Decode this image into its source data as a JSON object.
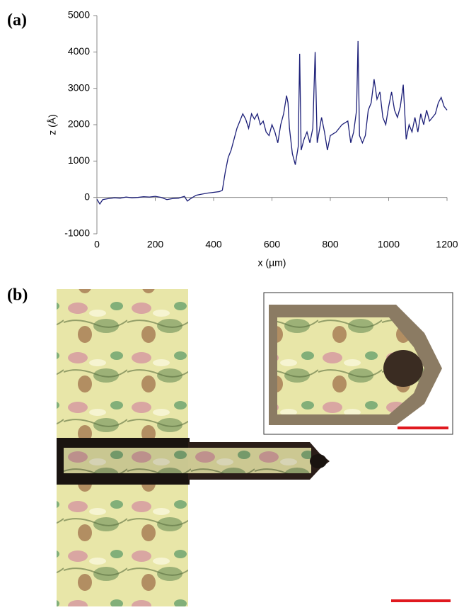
{
  "chart_data": {
    "type": "line",
    "label": "(a)",
    "xlabel": "x (µm)",
    "ylabel": "z (Å)",
    "x": [
      0,
      10,
      20,
      40,
      60,
      80,
      100,
      120,
      140,
      160,
      180,
      200,
      220,
      240,
      260,
      280,
      300,
      310,
      320,
      340,
      360,
      380,
      400,
      420,
      430,
      440,
      450,
      460,
      470,
      480,
      490,
      500,
      510,
      520,
      530,
      540,
      550,
      560,
      570,
      580,
      590,
      600,
      610,
      620,
      630,
      640,
      650,
      655,
      660,
      670,
      680,
      690,
      695,
      700,
      710,
      720,
      730,
      740,
      748,
      755,
      770,
      780,
      790,
      800,
      820,
      840,
      860,
      870,
      880,
      890,
      895,
      900,
      910,
      920,
      930,
      940,
      950,
      960,
      970,
      980,
      990,
      1000,
      1010,
      1020,
      1030,
      1040,
      1050,
      1060,
      1070,
      1080,
      1090,
      1100,
      1110,
      1120,
      1130,
      1140,
      1150,
      1160,
      1170,
      1180,
      1190,
      1200
    ],
    "series": [
      {
        "color": "#1c1f78",
        "values": [
          -50,
          -180,
          -60,
          -30,
          -10,
          -20,
          10,
          -10,
          0,
          20,
          10,
          30,
          0,
          -60,
          -30,
          -20,
          30,
          -100,
          -40,
          60,
          90,
          120,
          140,
          160,
          200,
          700,
          1100,
          1300,
          1600,
          1900,
          2100,
          2300,
          2150,
          1900,
          2300,
          2150,
          2300,
          2000,
          2100,
          1800,
          1700,
          2000,
          1800,
          1500,
          2000,
          2300,
          2800,
          2600,
          1900,
          1200,
          900,
          1400,
          3950,
          1300,
          1600,
          1800,
          1500,
          1900,
          4000,
          1500,
          2200,
          1800,
          1300,
          1700,
          1800,
          2000,
          2100,
          1500,
          1800,
          2400,
          4300,
          1700,
          1500,
          1700,
          2400,
          2600,
          3250,
          2700,
          2900,
          2200,
          2000,
          2500,
          2900,
          2400,
          2200,
          2500,
          3100,
          1600,
          2000,
          1800,
          2200,
          1800,
          2300,
          2000,
          2400,
          2100,
          2200,
          2300,
          2600,
          2750,
          2500,
          2400
        ]
      }
    ],
    "xlim": [
      0,
      1200
    ],
    "xticks": [
      0,
      200,
      400,
      600,
      800,
      1000,
      1200
    ],
    "ylim": [
      -1000,
      5000
    ],
    "yticks": [
      -1000,
      0,
      1000,
      2000,
      3000,
      4000,
      5000
    ]
  },
  "figure_b": {
    "label": "(b)"
  }
}
